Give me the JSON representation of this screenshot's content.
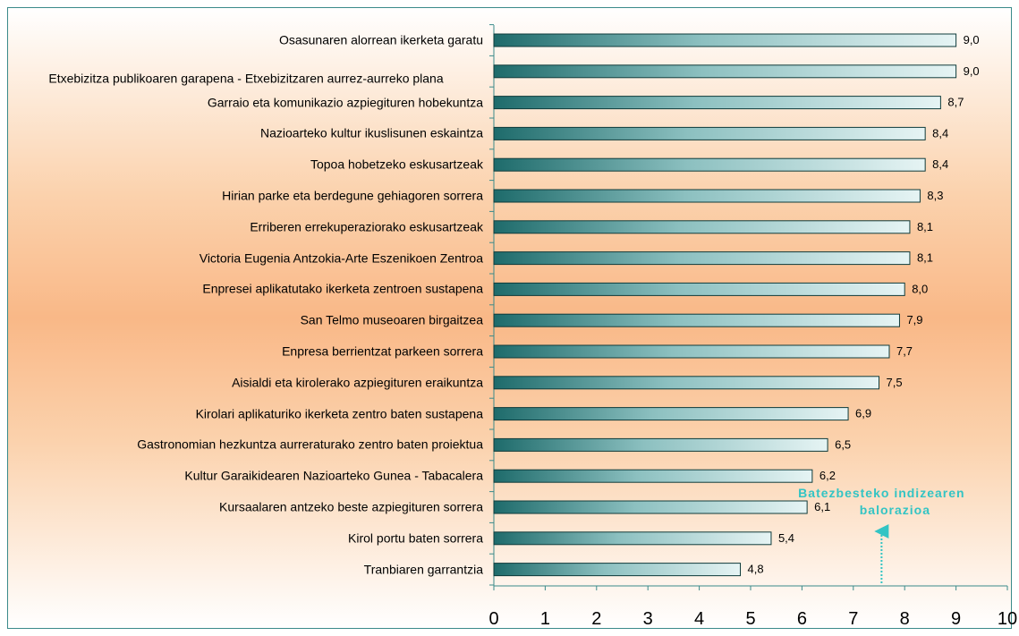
{
  "chart_data": {
    "type": "bar",
    "orientation": "horizontal",
    "categories": [
      "Osasunaren alorrean ikerketa garatu",
      "Etxebizitza publikoaren garapena - Etxebizitzaren aurrez-aurreko plana",
      "Garraio eta komunikazio azpiegituren hobekuntza",
      "Nazioarteko kultur ikuslisunen eskaintza",
      "Topoa hobetzeko eskusartzeak",
      "Hirian parke eta berdegune gehiagoren sorrera",
      "Erriberen errekuperaziorako eskusartzeak",
      "Victoria Eugenia Antzokia-Arte Eszenikoen Zentroa",
      "Enpresei aplikatutako ikerketa zentroen sustapena",
      "San Telmo museoaren birgaitzea",
      "Enpresa berrientzat parkeen sorrera",
      "Aisialdi eta kirolerako azpiegituren eraikuntza",
      "Kirolari aplikaturiko ikerketa zentro baten sustapena",
      "Gastronomian hezkuntza aurreraturako zentro baten proiektua",
      "Kultur Garaikidearen Nazioarteko Gunea - Tabacalera",
      "Kursaalaren antzeko beste azpiegituren sorrera",
      "Kirol portu baten sorrera",
      "Tranbiaren garrantzia"
    ],
    "values": [
      9.0,
      9.0,
      8.7,
      8.4,
      8.4,
      8.3,
      8.1,
      8.1,
      8.0,
      7.9,
      7.7,
      7.5,
      6.9,
      6.5,
      6.2,
      6.1,
      5.4,
      4.8
    ],
    "value_labels": [
      "9,0",
      "9,0",
      "8,7",
      "8,4",
      "8,4",
      "8,3",
      "8,1",
      "8,1",
      "8,0",
      "7,9",
      "7,7",
      "7,5",
      "6,9",
      "6,5",
      "6,2",
      "6,1",
      "5,4",
      "4,8"
    ],
    "color": "#1e6b6b",
    "xlim": [
      0,
      10
    ],
    "xticks": [
      0,
      1,
      2,
      3,
      4,
      5,
      6,
      7,
      8,
      9,
      10
    ],
    "annotation": {
      "text": "Batezbesteko indizearen balorazioa",
      "value": 7.55
    }
  }
}
